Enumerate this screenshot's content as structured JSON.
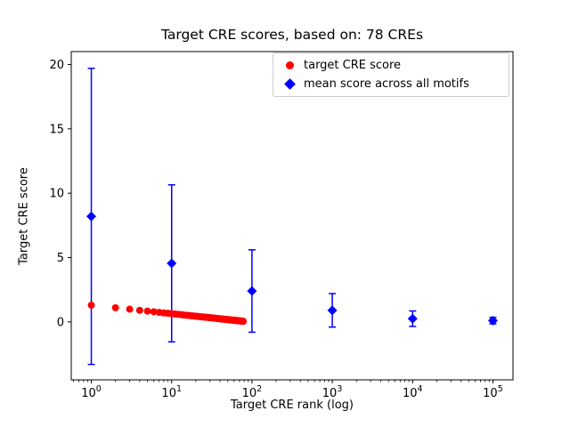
{
  "figure": {
    "background": "#ffffff"
  },
  "chart_data": {
    "type": "scatter",
    "title": "Target CRE scores, based on: 78 CREs",
    "xlabel": "Target CRE rank (log)",
    "ylabel": "Target CRE score",
    "x_scale": "log",
    "x_log10_range": [
      -0.25,
      5.25
    ],
    "ylim": [
      -4.5,
      21
    ],
    "y_ticks": [
      0,
      5,
      10,
      15,
      20
    ],
    "x_major_ticks": [
      1,
      10,
      100,
      1000,
      10000,
      100000
    ],
    "grid": false,
    "legend": {
      "position": "upper right",
      "entries": [
        {
          "label": "target CRE score",
          "marker": "circle",
          "color": "#ff0000"
        },
        {
          "label": "mean score across all motifs",
          "marker": "diamond",
          "color": "#0000ff"
        }
      ]
    },
    "series": [
      {
        "name": "mean score across all motifs",
        "marker": "diamond",
        "color": "#0000ff",
        "x": [
          1,
          10,
          100,
          1000,
          10000,
          100000
        ],
        "y": [
          8.2,
          4.55,
          2.4,
          0.9,
          0.25,
          0.1
        ],
        "yerr": [
          11.5,
          6.1,
          3.2,
          1.3,
          0.6,
          0.25
        ]
      },
      {
        "name": "target CRE score",
        "marker": "circle",
        "color": "#ff0000",
        "x": [
          1,
          2,
          3,
          4,
          5,
          6,
          7,
          8,
          9,
          10,
          11,
          12,
          13,
          14,
          15,
          16,
          17,
          18,
          19,
          20,
          21,
          22,
          23,
          24,
          25,
          26,
          27,
          28,
          29,
          30,
          31,
          32,
          33,
          34,
          35,
          36,
          37,
          38,
          39,
          40,
          41,
          42,
          43,
          44,
          45,
          46,
          47,
          48,
          49,
          50,
          51,
          52,
          53,
          54,
          55,
          56,
          57,
          58,
          59,
          60,
          61,
          62,
          63,
          64,
          65,
          66,
          67,
          68,
          69,
          70,
          71,
          72,
          73,
          74,
          75,
          76,
          77,
          78
        ],
        "y": [
          1.3,
          1.1,
          0.99,
          0.9,
          0.84,
          0.79,
          0.74,
          0.7,
          0.67,
          0.64,
          0.61,
          0.59,
          0.57,
          0.54,
          0.52,
          0.51,
          0.49,
          0.47,
          0.46,
          0.44,
          0.43,
          0.41,
          0.4,
          0.39,
          0.38,
          0.37,
          0.36,
          0.35,
          0.34,
          0.33,
          0.32,
          0.31,
          0.3,
          0.29,
          0.28,
          0.27,
          0.27,
          0.26,
          0.25,
          0.24,
          0.24,
          0.23,
          0.22,
          0.22,
          0.21,
          0.2,
          0.2,
          0.19,
          0.18,
          0.18,
          0.17,
          0.17,
          0.16,
          0.16,
          0.15,
          0.15,
          0.14,
          0.14,
          0.13,
          0.13,
          0.12,
          0.12,
          0.11,
          0.11,
          0.1,
          0.1,
          0.1,
          0.09,
          0.09,
          0.08,
          0.08,
          0.08,
          0.07,
          0.07,
          0.06,
          0.06,
          0.06,
          0.05
        ]
      }
    ]
  }
}
